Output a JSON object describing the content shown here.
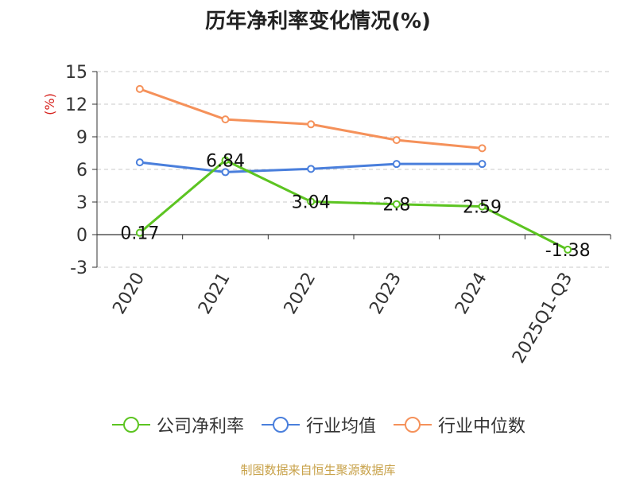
{
  "chart_data": {
    "type": "line",
    "title": "历年净利率变化情况(%)",
    "ylabel": "(%)",
    "xlabel": "",
    "categories": [
      "2020",
      "2021",
      "2022",
      "2023",
      "2024",
      "2025Q1-Q3"
    ],
    "yticks": [
      15,
      12,
      9,
      6,
      3,
      0,
      -3
    ],
    "ylim": [
      -3,
      15
    ],
    "grid": true,
    "legend_position": "bottom",
    "series": [
      {
        "name": "公司净利率",
        "color": "#5cc421",
        "values": [
          0.17,
          6.84,
          3.04,
          2.8,
          2.59,
          -1.38
        ],
        "labels": [
          "0.17",
          "6.84",
          "3.04",
          "2.8",
          "2.59",
          "-1.38"
        ]
      },
      {
        "name": "行业均值",
        "color": "#4a7fdc",
        "values": [
          6.65,
          5.75,
          6.05,
          6.5,
          6.5,
          null
        ]
      },
      {
        "name": "行业中位数",
        "color": "#f5915a",
        "values": [
          13.4,
          10.6,
          10.15,
          8.7,
          7.95,
          null
        ]
      }
    ]
  },
  "source": "制图数据来自恒生聚源数据库"
}
